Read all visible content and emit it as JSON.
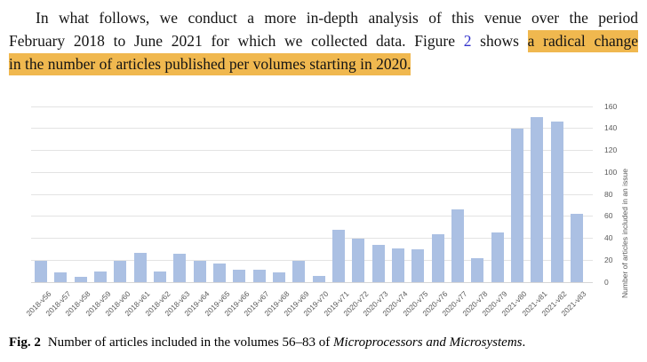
{
  "paragraph": {
    "line1": "In what follows, we conduct a more in-depth analysis of this venue over the period",
    "line2_before_ref": "February 2018 to June 2021 for which we collected data. Figure ",
    "line2_ref": "2",
    "line2_after_ref": " shows ",
    "line2_highlight": "a radical change",
    "line3_highlight": "in the number of articles published per volumes starting in 2020.",
    "highlight_color": "#f0b84f",
    "link_color": "#3333cc"
  },
  "chart_data": {
    "type": "bar",
    "title": "",
    "categories": [
      "2018-v56",
      "2018-v57",
      "2018-v58",
      "2018-v59",
      "2018-v60",
      "2018-v61",
      "2018-v62",
      "2018-v63",
      "2019-v64",
      "2019-v65",
      "2019-v66",
      "2019-v67",
      "2019-v68",
      "2019-v69",
      "2019-v70",
      "2019-v71",
      "2020-v72",
      "2020-v73",
      "2020-v74",
      "2020-v75",
      "2020-v76",
      "2020-v77",
      "2020-v78",
      "2020-v79",
      "2021-v80",
      "2021-v81",
      "2021-v82",
      "2021-v83"
    ],
    "values": [
      19,
      9,
      5,
      10,
      19,
      27,
      10,
      26,
      19,
      17,
      11,
      11,
      9,
      19,
      6,
      48,
      40,
      34,
      31,
      30,
      44,
      66,
      22,
      45,
      140,
      150,
      146,
      62
    ],
    "xlabel": "",
    "ylabel": "Number of articles included in an issue",
    "ylim": [
      0,
      160
    ],
    "yticks": [
      0,
      20,
      40,
      60,
      80,
      100,
      120,
      140,
      160
    ],
    "yaxis_side": "right",
    "grid": true,
    "legend": null,
    "bar_color": "#abc0e3",
    "gridline_color": "#e3e3e3",
    "axis_line_color": "#d6d6d6",
    "tick_label_color": "#595959"
  },
  "caption": {
    "label": "Fig. 2",
    "text": "Number of articles included in the volumes 56–83 of ",
    "italic_text": "Microprocessors and Microsystems",
    "suffix": "."
  }
}
